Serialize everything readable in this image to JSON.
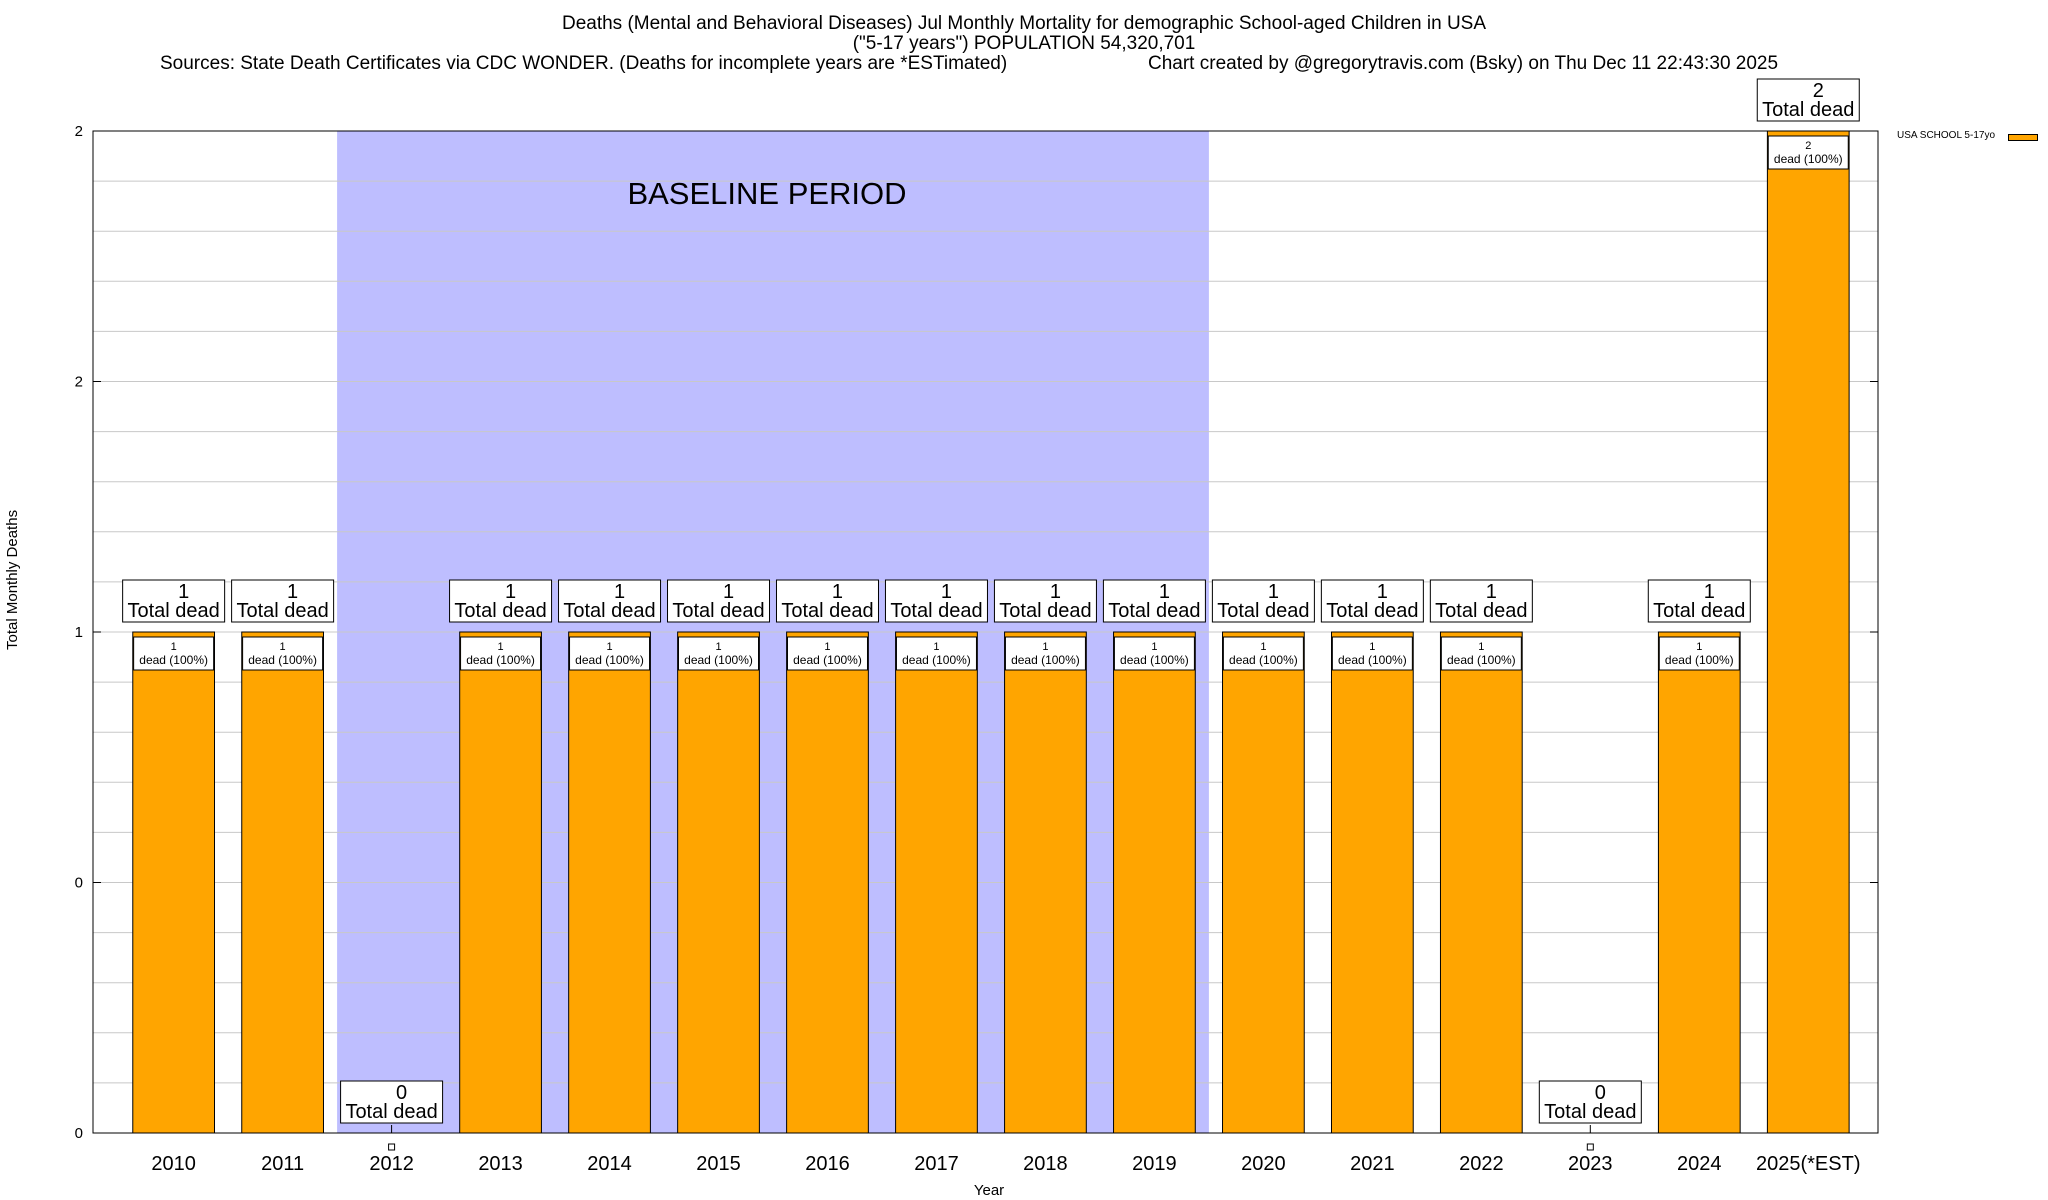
{
  "header": {
    "title_line1": "Deaths (Mental and Behavioral Diseases) Jul Monthly Mortality for demographic School-aged Children in USA",
    "title_line2": "(\"5-17 years\") POPULATION 54,320,701",
    "sources": "Sources: State Death Certificates via CDC WONDER. (Deaths for incomplete years are *ESTimated)",
    "credit": "Chart created by @gregorytravis.com (Bsky) on Thu Dec 11 22:43:30 2025"
  },
  "chart_data": {
    "type": "bar",
    "xlabel": "Year",
    "ylabel": "Total Monthly Deaths",
    "ylim": [
      0,
      2
    ],
    "y_tick_labels": [
      {
        "value": 0,
        "label": "0"
      },
      {
        "value": 0.5,
        "label": "0"
      },
      {
        "value": 1,
        "label": "1"
      },
      {
        "value": 1.5,
        "label": "2"
      },
      {
        "value": 2,
        "label": "2"
      }
    ],
    "grid": true,
    "legend_position": "top-right",
    "baseline_period": {
      "label": "BASELINE PERIOD",
      "from": "2012",
      "to": "2019"
    },
    "categories": [
      "2010",
      "2011",
      "2012",
      "2013",
      "2014",
      "2015",
      "2016",
      "2017",
      "2018",
      "2019",
      "2020",
      "2021",
      "2022",
      "2023",
      "2024",
      "2025(*EST)"
    ],
    "series": [
      {
        "name": "USA SCHOOL 5-17yo",
        "color": "#FFA500",
        "values": [
          1,
          1,
          0,
          1,
          1,
          1,
          1,
          1,
          1,
          1,
          1,
          1,
          1,
          0,
          1,
          2
        ]
      }
    ],
    "total_label_suffix": "Total dead",
    "inner_label_suffix": "dead (100%)",
    "colors": {
      "bar": "#FFA500",
      "baseline": "#BEBEFF",
      "grid": "#c8c8c8"
    }
  }
}
